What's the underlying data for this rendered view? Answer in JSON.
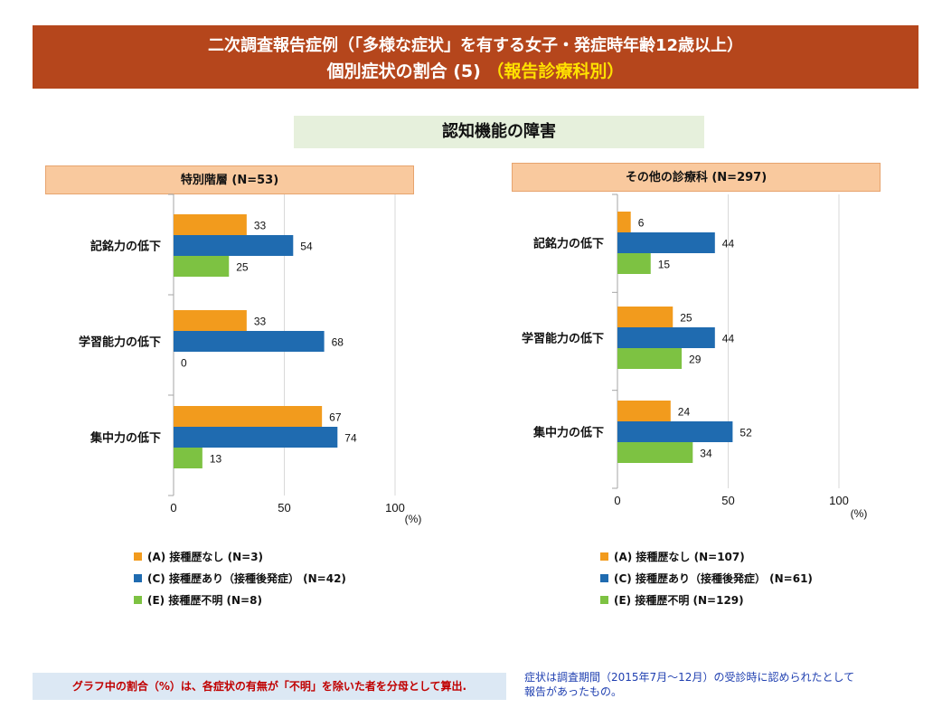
{
  "header": {
    "line1": "二次調査報告症例（「多様な症状」を有する女子・発症時年齢12歳以上）",
    "line2_main": "個別症状の割合 (5) ",
    "line2_highlight": "（報告診療科別）"
  },
  "subtitle": "認知機能の障害",
  "colors": {
    "A": "#F29B1D",
    "C": "#1F6BB0",
    "E": "#7DC242",
    "banner": "#B5461C"
  },
  "chart_data": [
    {
      "type": "bar",
      "orientation": "horizontal",
      "panel_title": "特別階層 (N=53)",
      "categories": [
        "記銘力の低下",
        "学習能力の低下",
        "集中力の低下"
      ],
      "series": [
        {
          "name": "(A) 接種歴なし (N=3)",
          "values": [
            33,
            33,
            67
          ]
        },
        {
          "name": "(C) 接種歴あり（接種後発症） (N=42)",
          "values": [
            54,
            68,
            74
          ]
        },
        {
          "name": "(E) 接種歴不明 (N=8)",
          "values": [
            25,
            0,
            13
          ]
        }
      ],
      "xlim": [
        0,
        100
      ],
      "xticks": [
        "0",
        "50",
        "100"
      ],
      "xunit": "(%)",
      "grid": true,
      "legend": "bottom"
    },
    {
      "type": "bar",
      "orientation": "horizontal",
      "panel_title": "その他の診療科 (N=297)",
      "categories": [
        "記銘力の低下",
        "学習能力の低下",
        "集中力の低下"
      ],
      "series": [
        {
          "name": "(A) 接種歴なし (N=107)",
          "values": [
            6,
            25,
            24
          ]
        },
        {
          "name": "(C) 接種歴あり（接種後発症） (N=61)",
          "values": [
            44,
            44,
            52
          ]
        },
        {
          "name": "(E) 接種歴不明 (N=129)",
          "values": [
            15,
            29,
            34
          ]
        }
      ],
      "xlim": [
        0,
        100
      ],
      "xticks": [
        "0",
        "50",
        "100"
      ],
      "xunit": "(%)",
      "grid": true,
      "legend": "bottom"
    }
  ],
  "footer": {
    "left_note": "グラフ中の割合（%）は、各症状の有無が「不明」を除いた者を分母として算出.",
    "right_note_1": "症状は調査期間（2015年7月～12月）の受診時に認められたとして",
    "right_note_2": "報告があったもの。"
  }
}
